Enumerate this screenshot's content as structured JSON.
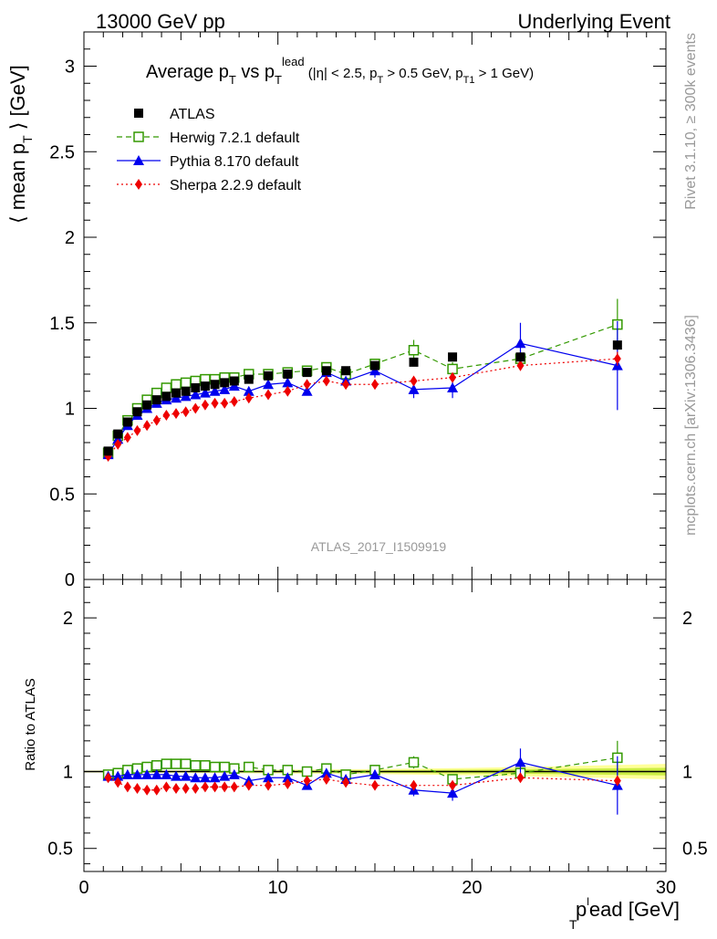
{
  "header": {
    "left": "13000 GeV pp",
    "right": "Underlying Event"
  },
  "side_labels": {
    "rivet": "Rivet 3.1.10, ≥ 300k events",
    "mcplots": "mcplots.cern.ch [arXiv:1306.3436]"
  },
  "title": {
    "main": "Average p",
    "main_sub": "T",
    "vs": " vs p",
    "vs_sub": "T",
    "vs_sup": "lead",
    "cuts_a": " (|η| < 2.5, p",
    "cuts_a_sub": "T",
    "cuts_b": " > 0.5 GeV, p",
    "cuts_b_sub": "T1",
    "cuts_c": " > 1 GeV)"
  },
  "analysis_id": "ATLAS_2017_I1509919",
  "axes": {
    "ylabel_main": "⟨ mean p",
    "ylabel_main_sub": "T",
    "ylabel_main_tail": " ⟩ [GeV]",
    "ylabel_ratio": "Ratio to ATLAS",
    "xlabel": "p",
    "xlabel_sub": "T",
    "xlabel_sup": "l",
    "xlabel_tail": "ead [GeV]"
  },
  "colors": {
    "atlas": "#000000",
    "herwig": "#339900",
    "pythia": "#0000ee",
    "sherpa": "#ee0000",
    "band_inner": "#ccee44",
    "band_outer": "#ffff99"
  },
  "chart_data": [
    {
      "type": "scatter",
      "panel": "main",
      "title": "Average pT vs pT lead (|η| < 2.5, pT > 0.5 GeV, pT1 > 1 GeV)",
      "xlabel": "p_T lead [GeV]",
      "ylabel": "⟨ mean p_T ⟩ [GeV]",
      "xlim": [
        0,
        30
      ],
      "ylim": [
        0,
        3.2
      ],
      "xticks": [
        0,
        10,
        20,
        30
      ],
      "yticks": [
        0.5,
        1,
        1.5,
        2,
        2.5,
        3
      ],
      "grid": false,
      "legend_position": "top-left",
      "x": [
        1.25,
        1.75,
        2.25,
        2.75,
        3.25,
        3.75,
        4.25,
        4.75,
        5.25,
        5.75,
        6.25,
        6.75,
        7.25,
        7.75,
        8.5,
        9.5,
        10.5,
        11.5,
        12.5,
        13.5,
        15,
        17,
        19,
        22.5,
        27.5
      ],
      "series": [
        {
          "name": "ATLAS",
          "marker": "square-filled",
          "values": [
            0.75,
            0.85,
            0.92,
            0.98,
            1.02,
            1.05,
            1.07,
            1.09,
            1.1,
            1.12,
            1.13,
            1.14,
            1.15,
            1.16,
            1.17,
            1.19,
            1.2,
            1.21,
            1.22,
            1.22,
            1.25,
            1.27,
            1.3,
            1.3,
            1.37
          ]
        },
        {
          "name": "Herwig 7.2.1 default",
          "marker": "square-open",
          "line": "dashed",
          "values": [
            0.74,
            0.84,
            0.93,
            1.0,
            1.05,
            1.09,
            1.12,
            1.14,
            1.15,
            1.16,
            1.17,
            1.17,
            1.18,
            1.18,
            1.2,
            1.2,
            1.21,
            1.22,
            1.24,
            1.2,
            1.26,
            1.34,
            1.23,
            1.29,
            1.49
          ],
          "errors": [
            0,
            0,
            0,
            0,
            0,
            0,
            0,
            0,
            0,
            0,
            0,
            0,
            0,
            0,
            0,
            0,
            0,
            0,
            0,
            0,
            0,
            0.06,
            0.04,
            0.05,
            0.15
          ]
        },
        {
          "name": "Pythia 8.170 default",
          "marker": "triangle-filled",
          "line": "solid",
          "values": [
            0.73,
            0.82,
            0.9,
            0.96,
            1.0,
            1.03,
            1.05,
            1.06,
            1.07,
            1.08,
            1.09,
            1.1,
            1.11,
            1.13,
            1.1,
            1.14,
            1.15,
            1.1,
            1.21,
            1.16,
            1.22,
            1.11,
            1.12,
            1.38,
            1.25
          ],
          "errors": [
            0,
            0,
            0,
            0,
            0,
            0,
            0,
            0,
            0,
            0,
            0,
            0,
            0,
            0,
            0,
            0,
            0,
            0,
            0,
            0,
            0.04,
            0.05,
            0.06,
            0.12,
            0.26
          ]
        },
        {
          "name": "Sherpa 2.2.9 default",
          "marker": "diamond-filled",
          "line": "dotted",
          "values": [
            0.72,
            0.79,
            0.83,
            0.87,
            0.9,
            0.93,
            0.96,
            0.97,
            0.98,
            1.0,
            1.02,
            1.03,
            1.03,
            1.04,
            1.06,
            1.08,
            1.1,
            1.14,
            1.16,
            1.14,
            1.14,
            1.16,
            1.18,
            1.25,
            1.29
          ],
          "errors": [
            0,
            0,
            0,
            0,
            0,
            0,
            0,
            0,
            0,
            0,
            0,
            0,
            0,
            0,
            0,
            0,
            0,
            0,
            0,
            0,
            0,
            0.02,
            0.02,
            0.03,
            0.04
          ]
        }
      ]
    },
    {
      "type": "scatter",
      "panel": "ratio",
      "ylabel": "Ratio to ATLAS",
      "xlim": [
        0,
        30
      ],
      "ylim": [
        0.35,
        2.25
      ],
      "yticks": [
        0.5,
        1,
        2
      ],
      "reference_value": 1,
      "x": [
        1.25,
        1.75,
        2.25,
        2.75,
        3.25,
        3.75,
        4.25,
        4.75,
        5.25,
        5.75,
        6.25,
        6.75,
        7.25,
        7.75,
        8.5,
        9.5,
        10.5,
        11.5,
        12.5,
        13.5,
        15,
        17,
        19,
        22.5,
        27.5
      ],
      "series": [
        {
          "name": "Herwig 7.2.1 default",
          "values": [
            0.98,
            0.99,
            1.01,
            1.02,
            1.03,
            1.04,
            1.05,
            1.05,
            1.05,
            1.04,
            1.04,
            1.03,
            1.03,
            1.02,
            1.03,
            1.01,
            1.01,
            1.0,
            1.02,
            0.98,
            1.01,
            1.06,
            0.95,
            0.99,
            1.09
          ],
          "errors": [
            0,
            0,
            0,
            0,
            0,
            0,
            0,
            0,
            0,
            0,
            0,
            0,
            0,
            0,
            0,
            0,
            0,
            0,
            0,
            0,
            0,
            0.04,
            0.03,
            0.04,
            0.11
          ]
        },
        {
          "name": "Pythia 8.170 default",
          "values": [
            0.97,
            0.97,
            0.98,
            0.98,
            0.98,
            0.98,
            0.98,
            0.97,
            0.97,
            0.96,
            0.96,
            0.96,
            0.97,
            0.98,
            0.94,
            0.96,
            0.96,
            0.91,
            0.99,
            0.95,
            0.98,
            0.88,
            0.86,
            1.06,
            0.91
          ],
          "errors": [
            0,
            0,
            0,
            0,
            0,
            0,
            0,
            0,
            0,
            0,
            0,
            0,
            0,
            0,
            0,
            0,
            0,
            0,
            0,
            0,
            0.03,
            0.04,
            0.05,
            0.09,
            0.19
          ]
        },
        {
          "name": "Sherpa 2.2.9 default",
          "values": [
            0.96,
            0.93,
            0.9,
            0.89,
            0.88,
            0.88,
            0.9,
            0.89,
            0.89,
            0.89,
            0.9,
            0.9,
            0.9,
            0.9,
            0.91,
            0.91,
            0.92,
            0.94,
            0.95,
            0.93,
            0.91,
            0.91,
            0.91,
            0.96,
            0.94
          ],
          "errors": [
            0,
            0,
            0,
            0,
            0,
            0,
            0,
            0,
            0,
            0,
            0,
            0,
            0,
            0,
            0,
            0,
            0,
            0,
            0,
            0,
            0,
            0.02,
            0.02,
            0.02,
            0.03
          ]
        }
      ],
      "band": {
        "x": [
          0,
          5,
          10,
          15,
          20,
          25,
          30
        ],
        "inner": [
          0.003,
          0.004,
          0.006,
          0.008,
          0.012,
          0.018,
          0.025
        ],
        "outer": [
          0.006,
          0.008,
          0.012,
          0.016,
          0.024,
          0.036,
          0.05
        ]
      }
    }
  ]
}
